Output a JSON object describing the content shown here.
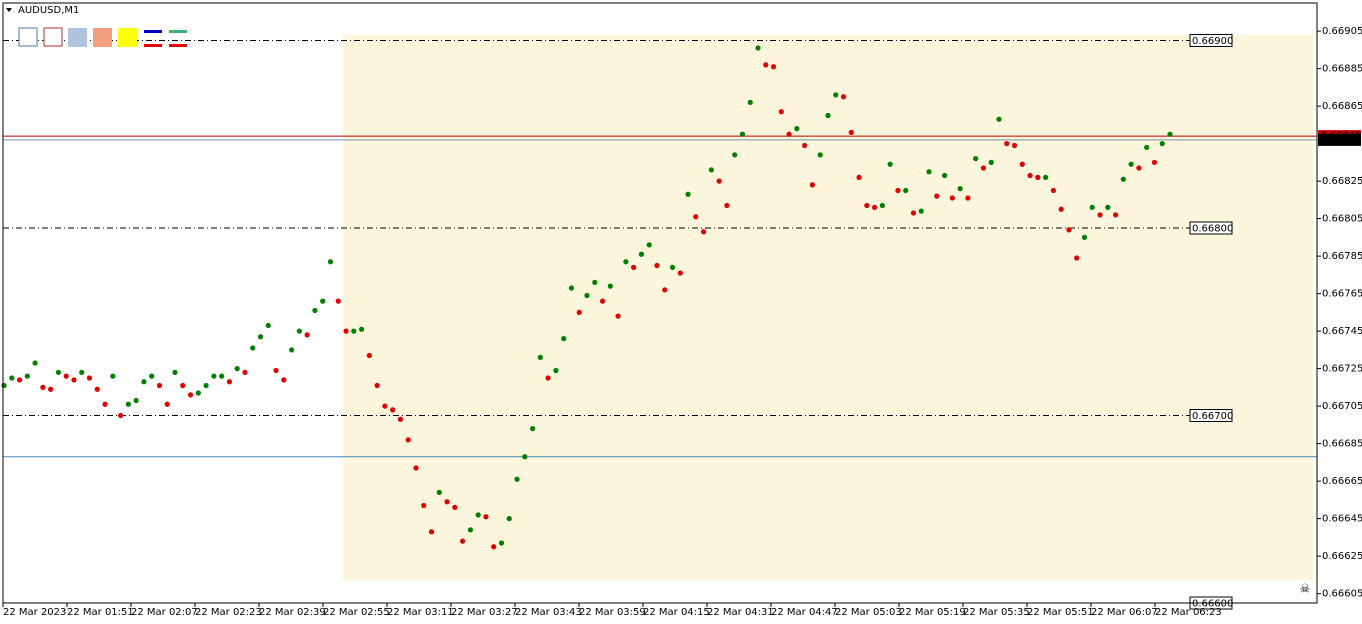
{
  "chart_data": {
    "type": "dots",
    "title": "AUDUSD,M1",
    "xtick_labels": [
      "22 Mar 2023",
      "22 Mar 01:51",
      "22 Mar 02:07",
      "22 Mar 02:23",
      "22 Mar 02:39",
      "22 Mar 02:55",
      "22 Mar 03:11",
      "22 Mar 03:27",
      "22 Mar 03:43",
      "22 Mar 03:59",
      "22 Mar 04:15",
      "22 Mar 04:31",
      "22 Mar 04:47",
      "22 Mar 05:03",
      "22 Mar 05:19",
      "22 Mar 05:35",
      "22 Mar 05:51",
      "22 Mar 06:07",
      "22 Mar 06:23"
    ],
    "values": [
      0.66716,
      0.6672,
      0.66719,
      0.66721,
      0.66728,
      0.66715,
      0.66714,
      0.66723,
      0.66721,
      0.66719,
      0.66723,
      0.6672,
      0.66714,
      0.66706,
      0.66721,
      0.667,
      0.66706,
      0.66708,
      0.66718,
      0.66721,
      0.66716,
      0.66706,
      0.66723,
      0.66716,
      0.66711,
      0.66712,
      0.66716,
      0.66721,
      0.66721,
      0.66718,
      0.66725,
      0.66723,
      0.66736,
      0.66742,
      0.66748,
      0.66724,
      0.66719,
      0.66735,
      0.66745,
      0.66743,
      0.66756,
      0.66761,
      0.66782,
      0.66761,
      0.66745,
      0.66745,
      0.66746,
      0.66732,
      0.66716,
      0.66705,
      0.66703,
      0.66698,
      0.66687,
      0.66672,
      0.66652,
      0.66638,
      0.66659,
      0.66654,
      0.66651,
      0.66633,
      0.66639,
      0.66647,
      0.66646,
      0.6663,
      0.66632,
      0.66645,
      0.66666,
      0.66678,
      0.66693,
      0.66731,
      0.6672,
      0.66724,
      0.66741,
      0.66768,
      0.66755,
      0.66764,
      0.66771,
      0.66761,
      0.66769,
      0.66753,
      0.66782,
      0.66779,
      0.66786,
      0.66791,
      0.6678,
      0.66767,
      0.66779,
      0.66776,
      0.66818,
      0.66806,
      0.66798,
      0.66831,
      0.66825,
      0.66812,
      0.66839,
      0.6685,
      0.66867,
      0.66896,
      0.66887,
      0.66886,
      0.66862,
      0.6685,
      0.66853,
      0.66844,
      0.66823,
      0.66839,
      0.6686,
      0.66871,
      0.6687,
      0.66851,
      0.66827,
      0.66812,
      0.66811,
      0.66812,
      0.66834,
      0.6682,
      0.6682,
      0.66808,
      0.66809,
      0.6683,
      0.66817,
      0.66828,
      0.66816,
      0.66821,
      0.66816,
      0.66837,
      0.66832,
      0.66835,
      0.66858,
      0.66845,
      0.66844,
      0.66834,
      0.66828,
      0.66827,
      0.66827,
      0.6682,
      0.6681,
      0.66799,
      0.66784,
      0.66795,
      0.66811,
      0.66807,
      0.66811,
      0.66807,
      0.66826,
      0.66834,
      0.66832,
      0.66843,
      0.66835,
      0.66845,
      0.6685
    ],
    "up_color": "#008000",
    "down_color": "#e00000",
    "ylim": [
      0.666,
      0.6692
    ],
    "yticks": [
      0.66905,
      0.66885,
      0.66865,
      0.66825,
      0.66805,
      0.66785,
      0.66765,
      0.66745,
      0.66725,
      0.66705,
      0.66685,
      0.66665,
      0.66645,
      0.66625,
      0.66605
    ],
    "levels": [
      {
        "value": 0.669,
        "label": "0.66900"
      },
      {
        "value": 0.668,
        "label": "0.66800"
      },
      {
        "value": 0.667,
        "label": "0.66700"
      },
      {
        "value": 0.666,
        "label": "0.66600"
      }
    ],
    "zone": [
      0.66903,
      0.66612
    ],
    "zone_color": "#fdf5dc",
    "ask": {
      "value": 0.66849,
      "label": "0.66849"
    },
    "ask_color": "#c00000",
    "bid": {
      "value": 0.66847,
      "label": "0.66847"
    },
    "bid_color": "#8090a8",
    "hline": 0.66678,
    "hline_color": "#4a8ac0"
  }
}
